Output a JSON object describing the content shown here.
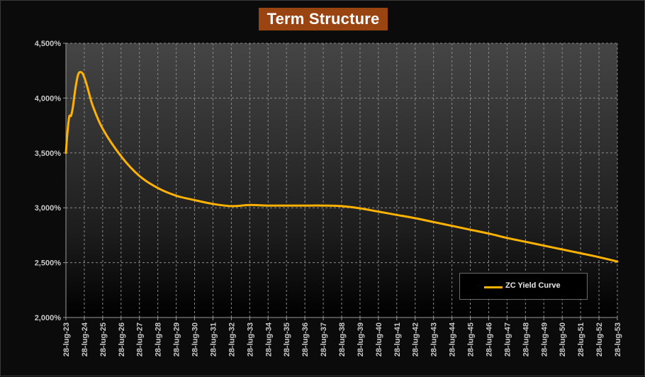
{
  "chart_data": {
    "type": "line",
    "title": "Term Structure",
    "xlabel": "",
    "ylabel": "",
    "y_tick_labels": [
      "2,000%",
      "2,500%",
      "3,000%",
      "3,500%",
      "4,000%",
      "4,500%"
    ],
    "y_ticks": [
      2.0,
      2.5,
      3.0,
      3.5,
      4.0,
      4.5
    ],
    "ylim": [
      2.0,
      4.5
    ],
    "x_tick_labels": [
      "28-lug-23",
      "28-lug-24",
      "28-lug-25",
      "28-lug-26",
      "28-lug-27",
      "28-lug-28",
      "28-lug-29",
      "28-lug-30",
      "28-lug-31",
      "28-lug-32",
      "28-lug-33",
      "28-lug-34",
      "28-lug-35",
      "28-lug-36",
      "28-lug-37",
      "28-lug-38",
      "28-lug-39",
      "28-lug-40",
      "28-lug-41",
      "28-lug-42",
      "28-lug-43",
      "28-lug-44",
      "28-lug-45",
      "28-lug-46",
      "28-lug-47",
      "28-lug-48",
      "28-lug-49",
      "28-lug-50",
      "28-lug-51",
      "28-lug-52",
      "28-lug-53"
    ],
    "xlim": [
      2023.57,
      2053.57
    ],
    "grid": true,
    "legend_position": "bottom-right",
    "series": [
      {
        "name": "ZC Yield Curve",
        "color": "#ffb300",
        "x": [
          2023.57,
          2023.65,
          2023.75,
          2023.85,
          2023.95,
          2024.1,
          2024.25,
          2024.45,
          2024.65,
          2024.85,
          2025.05,
          2025.57,
          2026.57,
          2027.57,
          2028.57,
          2029.57,
          2030.57,
          2031.57,
          2032.57,
          2033.57,
          2034.57,
          2035.57,
          2036.57,
          2037.57,
          2038.57,
          2039.57,
          2040.57,
          2041.57,
          2042.57,
          2043.57,
          2044.57,
          2045.57,
          2046.57,
          2047.57,
          2048.57,
          2049.57,
          2050.57,
          2051.57,
          2052.57,
          2053.57
        ],
        "y": [
          3.5,
          3.68,
          3.83,
          3.84,
          3.92,
          4.1,
          4.22,
          4.23,
          4.15,
          4.03,
          3.92,
          3.72,
          3.47,
          3.29,
          3.18,
          3.11,
          3.07,
          3.035,
          3.015,
          3.025,
          3.02,
          3.02,
          3.02,
          3.02,
          3.015,
          2.995,
          2.965,
          2.935,
          2.905,
          2.87,
          2.835,
          2.8,
          2.765,
          2.725,
          2.69,
          2.655,
          2.62,
          2.585,
          2.55,
          2.51
        ]
      }
    ]
  },
  "colors": {
    "background": "#0b0b0b",
    "plot_top": "#454545",
    "plot_bottom": "#000000",
    "title_bg": "#9a4511",
    "line": "#ffb300"
  }
}
